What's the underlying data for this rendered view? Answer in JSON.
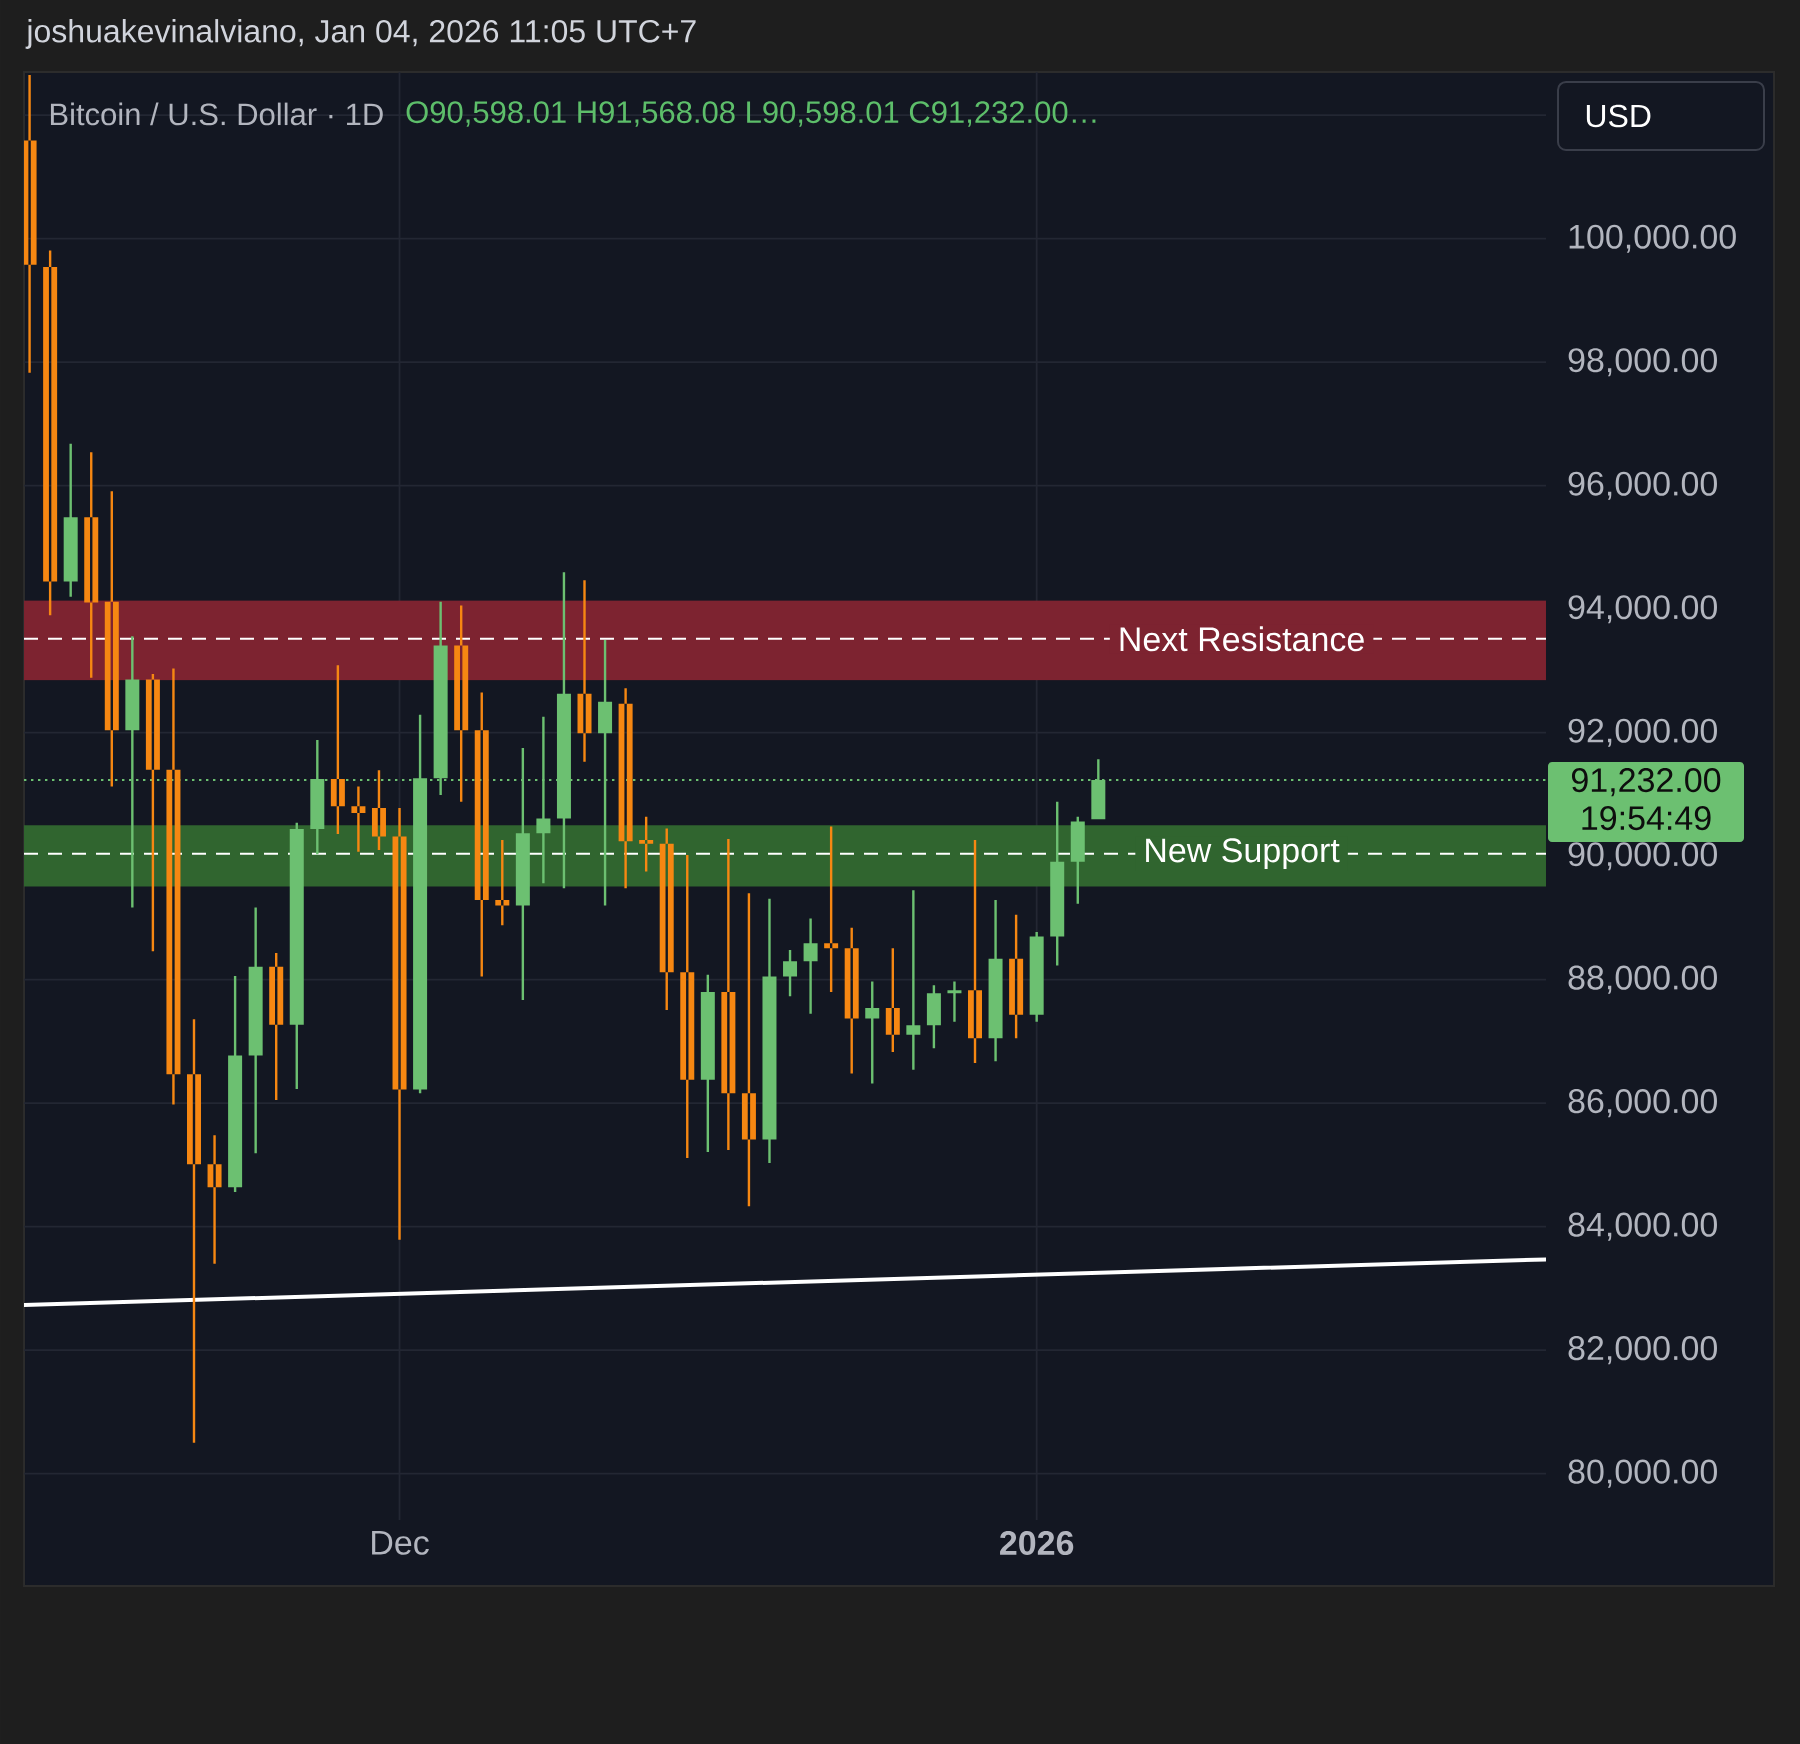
{
  "chart_data": {
    "type": "candlestick",
    "title": "Bitcoin / U.S. Dollar · 1D",
    "subtitle": "O90,598.01 H91,568.08 L90,598.01 C91,232.00…",
    "annotations": [
      "joshuakevinalviano, Jan 04, 2026 11:05 UTC+7",
      "USD",
      "19:54:49"
    ],
    "x": [
      "2025-11-13",
      "2025-11-14",
      "2025-11-15",
      "2025-11-16",
      "2025-11-17",
      "2025-11-18",
      "2025-11-19",
      "2025-11-20",
      "2025-11-21",
      "2025-11-22",
      "2025-11-23",
      "2025-11-24",
      "2025-11-25",
      "2025-11-26",
      "2025-11-27",
      "2025-11-28",
      "2025-11-29",
      "2025-11-30",
      "2025-12-01",
      "2025-12-02",
      "2025-12-03",
      "2025-12-04",
      "2025-12-05",
      "2025-12-06",
      "2025-12-07",
      "2025-12-08",
      "2025-12-09",
      "2025-12-10",
      "2025-12-11",
      "2025-12-12",
      "2025-12-13",
      "2025-12-14",
      "2025-12-15",
      "2025-12-16",
      "2025-12-17",
      "2025-12-18",
      "2025-12-19",
      "2025-12-20",
      "2025-12-21",
      "2025-12-22",
      "2025-12-23",
      "2025-12-24",
      "2025-12-25",
      "2025-12-26",
      "2025-12-27",
      "2025-12-28",
      "2025-12-29",
      "2025-12-30",
      "2025-12-31",
      "2026-01-01",
      "2026-01-02",
      "2026-01-03",
      "2026-01-04"
    ],
    "ohlc": [
      [
        101590,
        102650,
        97830,
        99580
      ],
      [
        99540,
        99810,
        93900,
        94450
      ],
      [
        94450,
        96680,
        94200,
        95490
      ],
      [
        95490,
        96540,
        92890,
        94110
      ],
      [
        94120,
        95910,
        91130,
        92040
      ],
      [
        92040,
        93560,
        89170,
        92860
      ],
      [
        92860,
        92950,
        88460,
        91400
      ],
      [
        91400,
        93040,
        85980,
        86470
      ],
      [
        86470,
        87360,
        80500,
        85010
      ],
      [
        85010,
        85480,
        83400,
        84640
      ],
      [
        84640,
        88060,
        84560,
        86770
      ],
      [
        86770,
        89170,
        85190,
        88210
      ],
      [
        88210,
        88430,
        86050,
        87270
      ],
      [
        87270,
        90540,
        86230,
        90440
      ],
      [
        90440,
        91880,
        90030,
        91250
      ],
      [
        91250,
        93090,
        90360,
        90810
      ],
      [
        90810,
        91130,
        90070,
        90700
      ],
      [
        90780,
        91390,
        90100,
        90320
      ],
      [
        90320,
        90780,
        83790,
        86220
      ],
      [
        86220,
        92290,
        86160,
        91260
      ],
      [
        91260,
        94120,
        90990,
        93410
      ],
      [
        93410,
        94060,
        90880,
        92040
      ],
      [
        92040,
        92650,
        88050,
        89290
      ],
      [
        89290,
        90260,
        88880,
        89200
      ],
      [
        89200,
        91750,
        87670,
        90370
      ],
      [
        90370,
        92260,
        89560,
        90610
      ],
      [
        90610,
        94600,
        89480,
        92630
      ],
      [
        92630,
        94470,
        91530,
        91990
      ],
      [
        91990,
        93500,
        89200,
        92500
      ],
      [
        92470,
        92720,
        89480,
        90240
      ],
      [
        90260,
        90640,
        89750,
        90200
      ],
      [
        90200,
        90450,
        87510,
        88120
      ],
      [
        88120,
        90020,
        85110,
        86380
      ],
      [
        86380,
        88080,
        85210,
        87800
      ],
      [
        87800,
        90280,
        85240,
        86160
      ],
      [
        86160,
        89400,
        84330,
        85410
      ],
      [
        85410,
        89310,
        85030,
        88050
      ],
      [
        88050,
        88480,
        87730,
        88300
      ],
      [
        88300,
        88990,
        87450,
        88590
      ],
      [
        88590,
        90480,
        87800,
        88510
      ],
      [
        88510,
        88840,
        86480,
        87370
      ],
      [
        87370,
        87970,
        86320,
        87540
      ],
      [
        87540,
        88510,
        86830,
        87110
      ],
      [
        87110,
        89450,
        86540,
        87260
      ],
      [
        87260,
        87910,
        86890,
        87780
      ],
      [
        87780,
        87970,
        87320,
        87830
      ],
      [
        87830,
        90260,
        86650,
        87050
      ],
      [
        87050,
        89290,
        86680,
        88340
      ],
      [
        88340,
        89050,
        87050,
        87430
      ],
      [
        87430,
        88770,
        87320,
        88700
      ],
      [
        88700,
        90880,
        88230,
        89910
      ],
      [
        89910,
        90640,
        89230,
        90560
      ],
      [
        90598.01,
        91568.08,
        90598.01,
        91232.0
      ]
    ],
    "colors": [
      "#f68712",
      "#f68712",
      "#6cc071",
      "#f68712",
      "#f68712",
      "#6cc071",
      "#f68712",
      "#f68712",
      "#f68712",
      "#f68712",
      "#6cc071",
      "#6cc071",
      "#f68712",
      "#6cc071",
      "#6cc071",
      "#f68712",
      "#f68712",
      "#f68712",
      "#f68712",
      "#6cc071",
      "#6cc071",
      "#f68712",
      "#f68712",
      "#f68712",
      "#6cc071",
      "#6cc071",
      "#6cc071",
      "#f68712",
      "#6cc071",
      "#f68712",
      "#f68712",
      "#f68712",
      "#f68712",
      "#6cc071",
      "#f68712",
      "#f68712",
      "#6cc071",
      "#6cc071",
      "#6cc071",
      "#f68712",
      "#f68712",
      "#6cc071",
      "#f68712",
      "#6cc071",
      "#6cc071",
      "#6cc071",
      "#f68712",
      "#6cc071",
      "#f68712",
      "#6cc071",
      "#6cc071",
      "#6cc071",
      "#6cc071"
    ],
    "series": [
      {
        "type": "line",
        "x": [
          "2025-11-12T17:30",
          "2026-01-25T18:45"
        ],
        "values": [
          82730,
          83470
        ],
        "color": "#ffffff"
      }
    ],
    "xlim": [
      "2025-11-12T17:30",
      "2026-01-25T18:45"
    ],
    "xticks": [
      {
        "value": "2025-12-01",
        "label": "Dec"
      },
      {
        "value": "2026-01-01",
        "label": "2026"
      }
    ],
    "ylim": [
      79250,
      102700
    ],
    "yticks": [
      {
        "value": 80000,
        "label": "80,000.00"
      },
      {
        "value": 82000,
        "label": "82,000.00"
      },
      {
        "value": 84000,
        "label": "84,000.00"
      },
      {
        "value": 86000,
        "label": "86,000.00"
      },
      {
        "value": 88000,
        "label": "88,000.00"
      },
      {
        "value": 90000,
        "label": "90,000.00"
      },
      {
        "value": 92000,
        "label": "92,000.00"
      },
      {
        "value": 94000,
        "label": "94,000.00"
      },
      {
        "value": 96000,
        "label": "96,000.00"
      },
      {
        "value": 98000,
        "label": "98,000.00"
      },
      {
        "value": 100000,
        "label": "100,000.00"
      },
      {
        "value": 102000,
        "label": null
      }
    ],
    "grid": true,
    "bands": [
      {
        "axis": "y",
        "from": 92850,
        "to": 94140,
        "color": "#7d2330"
      },
      {
        "axis": "y",
        "from": 89510,
        "to": 90500,
        "color": "#30652f"
      }
    ],
    "ref_lines": [
      {
        "axis": "y",
        "value": 93520,
        "label": "Next Resistance",
        "line_style": "dashed",
        "color": "#ffffff"
      },
      {
        "axis": "y",
        "value": 90040,
        "label": "New Support",
        "line_style": "dashed",
        "color": "#ffffff"
      },
      {
        "axis": "y",
        "value": 91232,
        "label": "91,232.00",
        "line_style": "dotted",
        "color": "#6cc071"
      }
    ]
  }
}
